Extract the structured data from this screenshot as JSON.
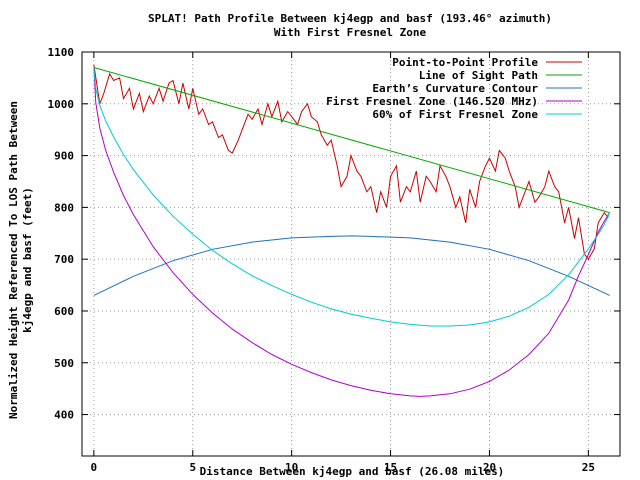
{
  "chart_data": {
    "type": "line",
    "title": "SPLAT! Path Profile Between kj4egp and basf (193.46° azimuth)",
    "subtitle": "With First Fresnel Zone",
    "xlabel": "Distance Between kj4egp and basf (26.08 miles)",
    "ylabel_line1": "Normalized Height Referenced To LOS Path Between",
    "ylabel_line2": "kj4egp and basf (feet)",
    "xlim": [
      -0.6,
      26.6
    ],
    "ylim": [
      320,
      1100
    ],
    "xticks": [
      0,
      5,
      10,
      15,
      20,
      25
    ],
    "yticks": [
      400,
      500,
      600,
      700,
      800,
      900,
      1000,
      1100
    ],
    "grid": true,
    "legend_position": "top-right",
    "series": [
      {
        "name": "Point-to-Point Profile",
        "color": "#cc0000",
        "x": [
          0,
          0.3,
          0.5,
          0.8,
          1.0,
          1.3,
          1.5,
          1.8,
          2.0,
          2.3,
          2.5,
          2.8,
          3.0,
          3.3,
          3.5,
          3.8,
          4.0,
          4.3,
          4.5,
          4.8,
          5.0,
          5.3,
          5.5,
          5.8,
          6.0,
          6.3,
          6.5,
          6.8,
          7.0,
          7.3,
          7.5,
          7.8,
          8.0,
          8.3,
          8.5,
          8.8,
          9.0,
          9.3,
          9.5,
          9.8,
          10.0,
          10.3,
          10.5,
          10.8,
          11.0,
          11.3,
          11.5,
          11.8,
          12.0,
          12.3,
          12.5,
          12.8,
          13.0,
          13.3,
          13.5,
          13.8,
          14.0,
          14.3,
          14.5,
          14.8,
          15.0,
          15.3,
          15.5,
          15.8,
          16.0,
          16.3,
          16.5,
          16.8,
          17.0,
          17.3,
          17.5,
          17.8,
          18.0,
          18.3,
          18.5,
          18.8,
          19.0,
          19.3,
          19.5,
          19.8,
          20.0,
          20.3,
          20.5,
          20.8,
          21.0,
          21.3,
          21.5,
          21.8,
          22.0,
          22.3,
          22.5,
          22.8,
          23.0,
          23.3,
          23.5,
          23.8,
          24.0,
          24.3,
          24.5,
          24.8,
          25.0,
          25.3,
          25.5,
          25.8,
          26.0
        ],
        "y": [
          1075,
          1000,
          1020,
          1058,
          1045,
          1050,
          1010,
          1030,
          990,
          1020,
          985,
          1015,
          1000,
          1030,
          1005,
          1040,
          1045,
          1000,
          1040,
          990,
          1030,
          980,
          990,
          960,
          965,
          935,
          940,
          910,
          905,
          930,
          950,
          980,
          970,
          990,
          960,
          1000,
          975,
          1005,
          965,
          985,
          975,
          960,
          985,
          1000,
          975,
          965,
          940,
          920,
          930,
          880,
          840,
          860,
          900,
          870,
          860,
          830,
          840,
          790,
          830,
          800,
          860,
          880,
          810,
          840,
          830,
          870,
          810,
          860,
          850,
          830,
          880,
          860,
          840,
          800,
          820,
          770,
          835,
          800,
          850,
          880,
          895,
          870,
          910,
          895,
          870,
          840,
          800,
          830,
          850,
          810,
          820,
          840,
          870,
          840,
          830,
          770,
          800,
          740,
          780,
          710,
          700,
          720,
          770,
          790,
          780
        ]
      },
      {
        "name": "Line of Sight Path",
        "color": "#00aa00",
        "x": [
          0,
          26.08
        ],
        "y": [
          1070,
          790
        ]
      },
      {
        "name": "Earth’s Curvature Contour",
        "color": "#1f6fbf",
        "x": [
          0,
          2,
          4,
          6,
          8,
          10,
          12,
          13.04,
          14,
          16,
          18,
          20,
          22,
          24,
          26.08
        ],
        "y": [
          630,
          667,
          697,
          719,
          733,
          741,
          744,
          745,
          744,
          741,
          733,
          719,
          697,
          667,
          630
        ]
      },
      {
        "name": "First Fresnel Zone (146.520 MHz)",
        "color": "#b000d0",
        "x": [
          0,
          0.1,
          0.3,
          0.6,
          1,
          1.5,
          2,
          3,
          4,
          5,
          6,
          7,
          8,
          9,
          10,
          11,
          12,
          13,
          14,
          15,
          16,
          16.5,
          17,
          18,
          19,
          20,
          21,
          22,
          23,
          24,
          24.5,
          25,
          25.5,
          25.8,
          26.0,
          26.08
        ],
        "y": [
          1070,
          1002,
          953,
          910,
          868,
          823,
          786,
          724,
          674,
          632,
          596,
          565,
          539,
          516,
          497,
          481,
          467,
          456,
          447,
          440,
          436,
          435,
          436,
          440,
          449,
          464,
          486,
          516,
          557,
          621,
          668,
          709,
          752,
          773,
          785,
          790
        ]
      },
      {
        "name": "60% of First Fresnel Zone",
        "color": "#00cccc",
        "x": [
          0,
          0.1,
          0.3,
          0.6,
          1,
          1.5,
          2,
          3,
          4,
          5,
          6,
          7,
          8,
          9,
          10,
          11,
          12,
          13,
          14,
          15,
          16,
          17,
          18,
          19,
          20,
          21,
          22,
          23,
          24,
          25,
          25.5,
          25.8,
          26.0,
          26.08
        ],
        "y": [
          1070,
          1029,
          997,
          967,
          936,
          902,
          873,
          824,
          783,
          748,
          717,
          691,
          668,
          649,
          632,
          617,
          604,
          594,
          586,
          579,
          574,
          571,
          571,
          573,
          579,
          590,
          607,
          632,
          670,
          720,
          748,
          767,
          782,
          790
        ]
      }
    ]
  }
}
